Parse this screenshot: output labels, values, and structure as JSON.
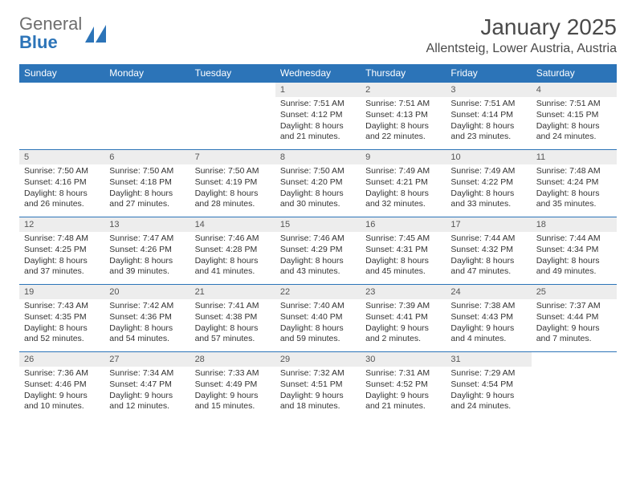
{
  "brand": {
    "line1": "General",
    "line2": "Blue"
  },
  "title": {
    "month": "January 2025",
    "location": "Allentsteig, Lower Austria, Austria"
  },
  "colors": {
    "header_bg": "#2c74b8",
    "header_text": "#ffffff",
    "row_border": "#2c74b8",
    "daynum_bg": "#ededed",
    "text": "#333333",
    "brand_gray": "#6e6e6e",
    "brand_blue": "#2c74b8",
    "background": "#ffffff"
  },
  "fonts": {
    "family": "Arial",
    "title_size_pt": 21,
    "location_size_pt": 12,
    "header_size_pt": 9,
    "cell_size_pt": 8
  },
  "calendar": {
    "columns": [
      "Sunday",
      "Monday",
      "Tuesday",
      "Wednesday",
      "Thursday",
      "Friday",
      "Saturday"
    ],
    "weeks": [
      [
        {
          "empty": true
        },
        {
          "empty": true
        },
        {
          "empty": true
        },
        {
          "day": "1",
          "sunrise": "Sunrise: 7:51 AM",
          "sunset": "Sunset: 4:12 PM",
          "daylight1": "Daylight: 8 hours",
          "daylight2": "and 21 minutes."
        },
        {
          "day": "2",
          "sunrise": "Sunrise: 7:51 AM",
          "sunset": "Sunset: 4:13 PM",
          "daylight1": "Daylight: 8 hours",
          "daylight2": "and 22 minutes."
        },
        {
          "day": "3",
          "sunrise": "Sunrise: 7:51 AM",
          "sunset": "Sunset: 4:14 PM",
          "daylight1": "Daylight: 8 hours",
          "daylight2": "and 23 minutes."
        },
        {
          "day": "4",
          "sunrise": "Sunrise: 7:51 AM",
          "sunset": "Sunset: 4:15 PM",
          "daylight1": "Daylight: 8 hours",
          "daylight2": "and 24 minutes."
        }
      ],
      [
        {
          "day": "5",
          "sunrise": "Sunrise: 7:50 AM",
          "sunset": "Sunset: 4:16 PM",
          "daylight1": "Daylight: 8 hours",
          "daylight2": "and 26 minutes."
        },
        {
          "day": "6",
          "sunrise": "Sunrise: 7:50 AM",
          "sunset": "Sunset: 4:18 PM",
          "daylight1": "Daylight: 8 hours",
          "daylight2": "and 27 minutes."
        },
        {
          "day": "7",
          "sunrise": "Sunrise: 7:50 AM",
          "sunset": "Sunset: 4:19 PM",
          "daylight1": "Daylight: 8 hours",
          "daylight2": "and 28 minutes."
        },
        {
          "day": "8",
          "sunrise": "Sunrise: 7:50 AM",
          "sunset": "Sunset: 4:20 PM",
          "daylight1": "Daylight: 8 hours",
          "daylight2": "and 30 minutes."
        },
        {
          "day": "9",
          "sunrise": "Sunrise: 7:49 AM",
          "sunset": "Sunset: 4:21 PM",
          "daylight1": "Daylight: 8 hours",
          "daylight2": "and 32 minutes."
        },
        {
          "day": "10",
          "sunrise": "Sunrise: 7:49 AM",
          "sunset": "Sunset: 4:22 PM",
          "daylight1": "Daylight: 8 hours",
          "daylight2": "and 33 minutes."
        },
        {
          "day": "11",
          "sunrise": "Sunrise: 7:48 AM",
          "sunset": "Sunset: 4:24 PM",
          "daylight1": "Daylight: 8 hours",
          "daylight2": "and 35 minutes."
        }
      ],
      [
        {
          "day": "12",
          "sunrise": "Sunrise: 7:48 AM",
          "sunset": "Sunset: 4:25 PM",
          "daylight1": "Daylight: 8 hours",
          "daylight2": "and 37 minutes."
        },
        {
          "day": "13",
          "sunrise": "Sunrise: 7:47 AM",
          "sunset": "Sunset: 4:26 PM",
          "daylight1": "Daylight: 8 hours",
          "daylight2": "and 39 minutes."
        },
        {
          "day": "14",
          "sunrise": "Sunrise: 7:46 AM",
          "sunset": "Sunset: 4:28 PM",
          "daylight1": "Daylight: 8 hours",
          "daylight2": "and 41 minutes."
        },
        {
          "day": "15",
          "sunrise": "Sunrise: 7:46 AM",
          "sunset": "Sunset: 4:29 PM",
          "daylight1": "Daylight: 8 hours",
          "daylight2": "and 43 minutes."
        },
        {
          "day": "16",
          "sunrise": "Sunrise: 7:45 AM",
          "sunset": "Sunset: 4:31 PM",
          "daylight1": "Daylight: 8 hours",
          "daylight2": "and 45 minutes."
        },
        {
          "day": "17",
          "sunrise": "Sunrise: 7:44 AM",
          "sunset": "Sunset: 4:32 PM",
          "daylight1": "Daylight: 8 hours",
          "daylight2": "and 47 minutes."
        },
        {
          "day": "18",
          "sunrise": "Sunrise: 7:44 AM",
          "sunset": "Sunset: 4:34 PM",
          "daylight1": "Daylight: 8 hours",
          "daylight2": "and 49 minutes."
        }
      ],
      [
        {
          "day": "19",
          "sunrise": "Sunrise: 7:43 AM",
          "sunset": "Sunset: 4:35 PM",
          "daylight1": "Daylight: 8 hours",
          "daylight2": "and 52 minutes."
        },
        {
          "day": "20",
          "sunrise": "Sunrise: 7:42 AM",
          "sunset": "Sunset: 4:36 PM",
          "daylight1": "Daylight: 8 hours",
          "daylight2": "and 54 minutes."
        },
        {
          "day": "21",
          "sunrise": "Sunrise: 7:41 AM",
          "sunset": "Sunset: 4:38 PM",
          "daylight1": "Daylight: 8 hours",
          "daylight2": "and 57 minutes."
        },
        {
          "day": "22",
          "sunrise": "Sunrise: 7:40 AM",
          "sunset": "Sunset: 4:40 PM",
          "daylight1": "Daylight: 8 hours",
          "daylight2": "and 59 minutes."
        },
        {
          "day": "23",
          "sunrise": "Sunrise: 7:39 AM",
          "sunset": "Sunset: 4:41 PM",
          "daylight1": "Daylight: 9 hours",
          "daylight2": "and 2 minutes."
        },
        {
          "day": "24",
          "sunrise": "Sunrise: 7:38 AM",
          "sunset": "Sunset: 4:43 PM",
          "daylight1": "Daylight: 9 hours",
          "daylight2": "and 4 minutes."
        },
        {
          "day": "25",
          "sunrise": "Sunrise: 7:37 AM",
          "sunset": "Sunset: 4:44 PM",
          "daylight1": "Daylight: 9 hours",
          "daylight2": "and 7 minutes."
        }
      ],
      [
        {
          "day": "26",
          "sunrise": "Sunrise: 7:36 AM",
          "sunset": "Sunset: 4:46 PM",
          "daylight1": "Daylight: 9 hours",
          "daylight2": "and 10 minutes."
        },
        {
          "day": "27",
          "sunrise": "Sunrise: 7:34 AM",
          "sunset": "Sunset: 4:47 PM",
          "daylight1": "Daylight: 9 hours",
          "daylight2": "and 12 minutes."
        },
        {
          "day": "28",
          "sunrise": "Sunrise: 7:33 AM",
          "sunset": "Sunset: 4:49 PM",
          "daylight1": "Daylight: 9 hours",
          "daylight2": "and 15 minutes."
        },
        {
          "day": "29",
          "sunrise": "Sunrise: 7:32 AM",
          "sunset": "Sunset: 4:51 PM",
          "daylight1": "Daylight: 9 hours",
          "daylight2": "and 18 minutes."
        },
        {
          "day": "30",
          "sunrise": "Sunrise: 7:31 AM",
          "sunset": "Sunset: 4:52 PM",
          "daylight1": "Daylight: 9 hours",
          "daylight2": "and 21 minutes."
        },
        {
          "day": "31",
          "sunrise": "Sunrise: 7:29 AM",
          "sunset": "Sunset: 4:54 PM",
          "daylight1": "Daylight: 9 hours",
          "daylight2": "and 24 minutes."
        },
        {
          "empty": true
        }
      ]
    ]
  }
}
